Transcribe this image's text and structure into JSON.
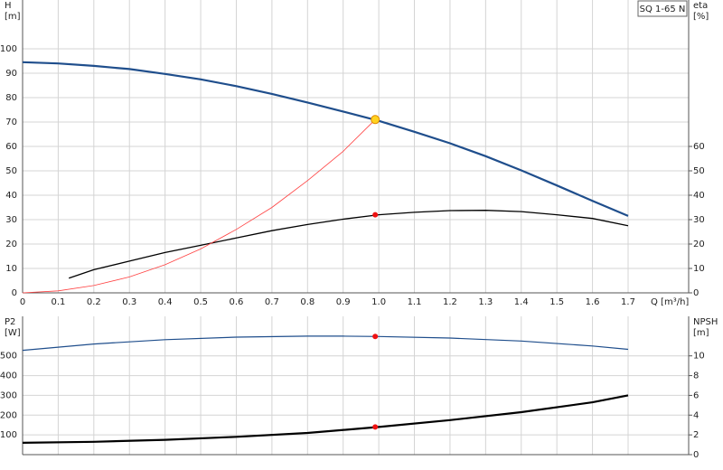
{
  "chart_data": [
    {
      "type": "line",
      "title": "SQ 1-65 N",
      "ylabel": [
        "H",
        "[m]"
      ],
      "y2label": [
        "eta",
        "[%]"
      ],
      "xlabel": "Q [m³/h]",
      "xlim": [
        0,
        1.87
      ],
      "xticks": [
        0,
        0.1,
        0.2,
        0.3,
        0.4,
        0.5,
        0.6,
        0.7,
        0.8,
        0.9,
        {
          "value": 1,
          "label": "1.0"
        },
        1.1,
        1.2,
        1.3,
        1.4,
        1.5,
        1.6,
        1.7
      ],
      "ylim": [
        0,
        120
      ],
      "yticks": [
        0,
        10,
        20,
        30,
        40,
        50,
        60,
        70,
        80,
        90,
        100
      ],
      "y2lim": [
        0,
        120
      ],
      "y2ticks": [
        0,
        10,
        20,
        30,
        40,
        50,
        60
      ],
      "grid": true,
      "series": [
        {
          "color": "#1f4e8c",
          "x": [
            0,
            0.1,
            0.2,
            0.3,
            0.4,
            0.5,
            0.6,
            0.7,
            0.8,
            0.9,
            1.0,
            1.1,
            1.2,
            1.3,
            1.4,
            1.5,
            1.6,
            1.7
          ],
          "values": [
            94.5,
            94,
            93,
            91.7,
            89.7,
            87.5,
            84.7,
            81.5,
            78,
            74.3,
            70.5,
            66,
            61.3,
            56,
            50.2,
            44,
            37.7,
            31.5
          ]
        },
        {
          "color": "#000000",
          "axis": "y2",
          "x": [
            0.13,
            0.2,
            0.3,
            0.4,
            0.5,
            0.6,
            0.7,
            0.8,
            0.9,
            1.0,
            1.1,
            1.2,
            1.3,
            1.4,
            1.5,
            1.6,
            1.7
          ],
          "values": [
            6,
            9.5,
            13,
            16.5,
            19.5,
            22.5,
            25.5,
            28,
            30.2,
            32,
            33,
            33.7,
            33.8,
            33.3,
            32,
            30.5,
            27.5
          ]
        },
        {
          "color": "#ff4040",
          "x": [
            0,
            0.1,
            0.2,
            0.3,
            0.4,
            0.5,
            0.6,
            0.7,
            0.8,
            0.9,
            0.99
          ],
          "values": [
            0,
            0.8,
            3,
            6.5,
            11.5,
            18,
            26,
            35,
            46,
            58,
            71
          ]
        },
        {
          "color": "#ffd21f",
          "marker": true,
          "x": [
            0.99
          ],
          "values": [
            71
          ]
        },
        {
          "color": "#ee1111",
          "marker": true,
          "axis": "y2",
          "x": [
            0.99
          ],
          "values": [
            32
          ]
        }
      ]
    },
    {
      "type": "line",
      "ylabel": [
        "P2",
        "[W]"
      ],
      "y2label": [
        "NPSH",
        "[m]"
      ],
      "xlim": [
        0,
        1.87
      ],
      "ylim": [
        0,
        700
      ],
      "yticks": [
        100,
        200,
        300,
        400,
        500
      ],
      "y2lim": [
        0,
        14
      ],
      "y2ticks": [
        0,
        2,
        4,
        6,
        8,
        10
      ],
      "grid": true,
      "series": [
        {
          "color": "#1f4e8c",
          "x": [
            0,
            0.2,
            0.4,
            0.6,
            0.8,
            0.9,
            1.0,
            1.2,
            1.4,
            1.6,
            1.7
          ],
          "values": [
            528,
            560,
            582,
            595,
            600,
            600,
            598,
            590,
            575,
            550,
            533
          ]
        },
        {
          "color": "#000000",
          "axis": "y2",
          "x": [
            0,
            0.2,
            0.4,
            0.6,
            0.8,
            1.0,
            1.2,
            1.4,
            1.6,
            1.7
          ],
          "values": [
            1.2,
            1.3,
            1.5,
            1.8,
            2.2,
            2.8,
            3.5,
            4.3,
            5.3,
            6.0
          ]
        },
        {
          "color": "#ee1111",
          "marker": true,
          "x": [
            0.99
          ],
          "values": [
            598
          ]
        },
        {
          "color": "#ee1111",
          "marker": true,
          "axis": "y2",
          "x": [
            0.99
          ],
          "values": [
            2.8
          ]
        }
      ]
    }
  ]
}
